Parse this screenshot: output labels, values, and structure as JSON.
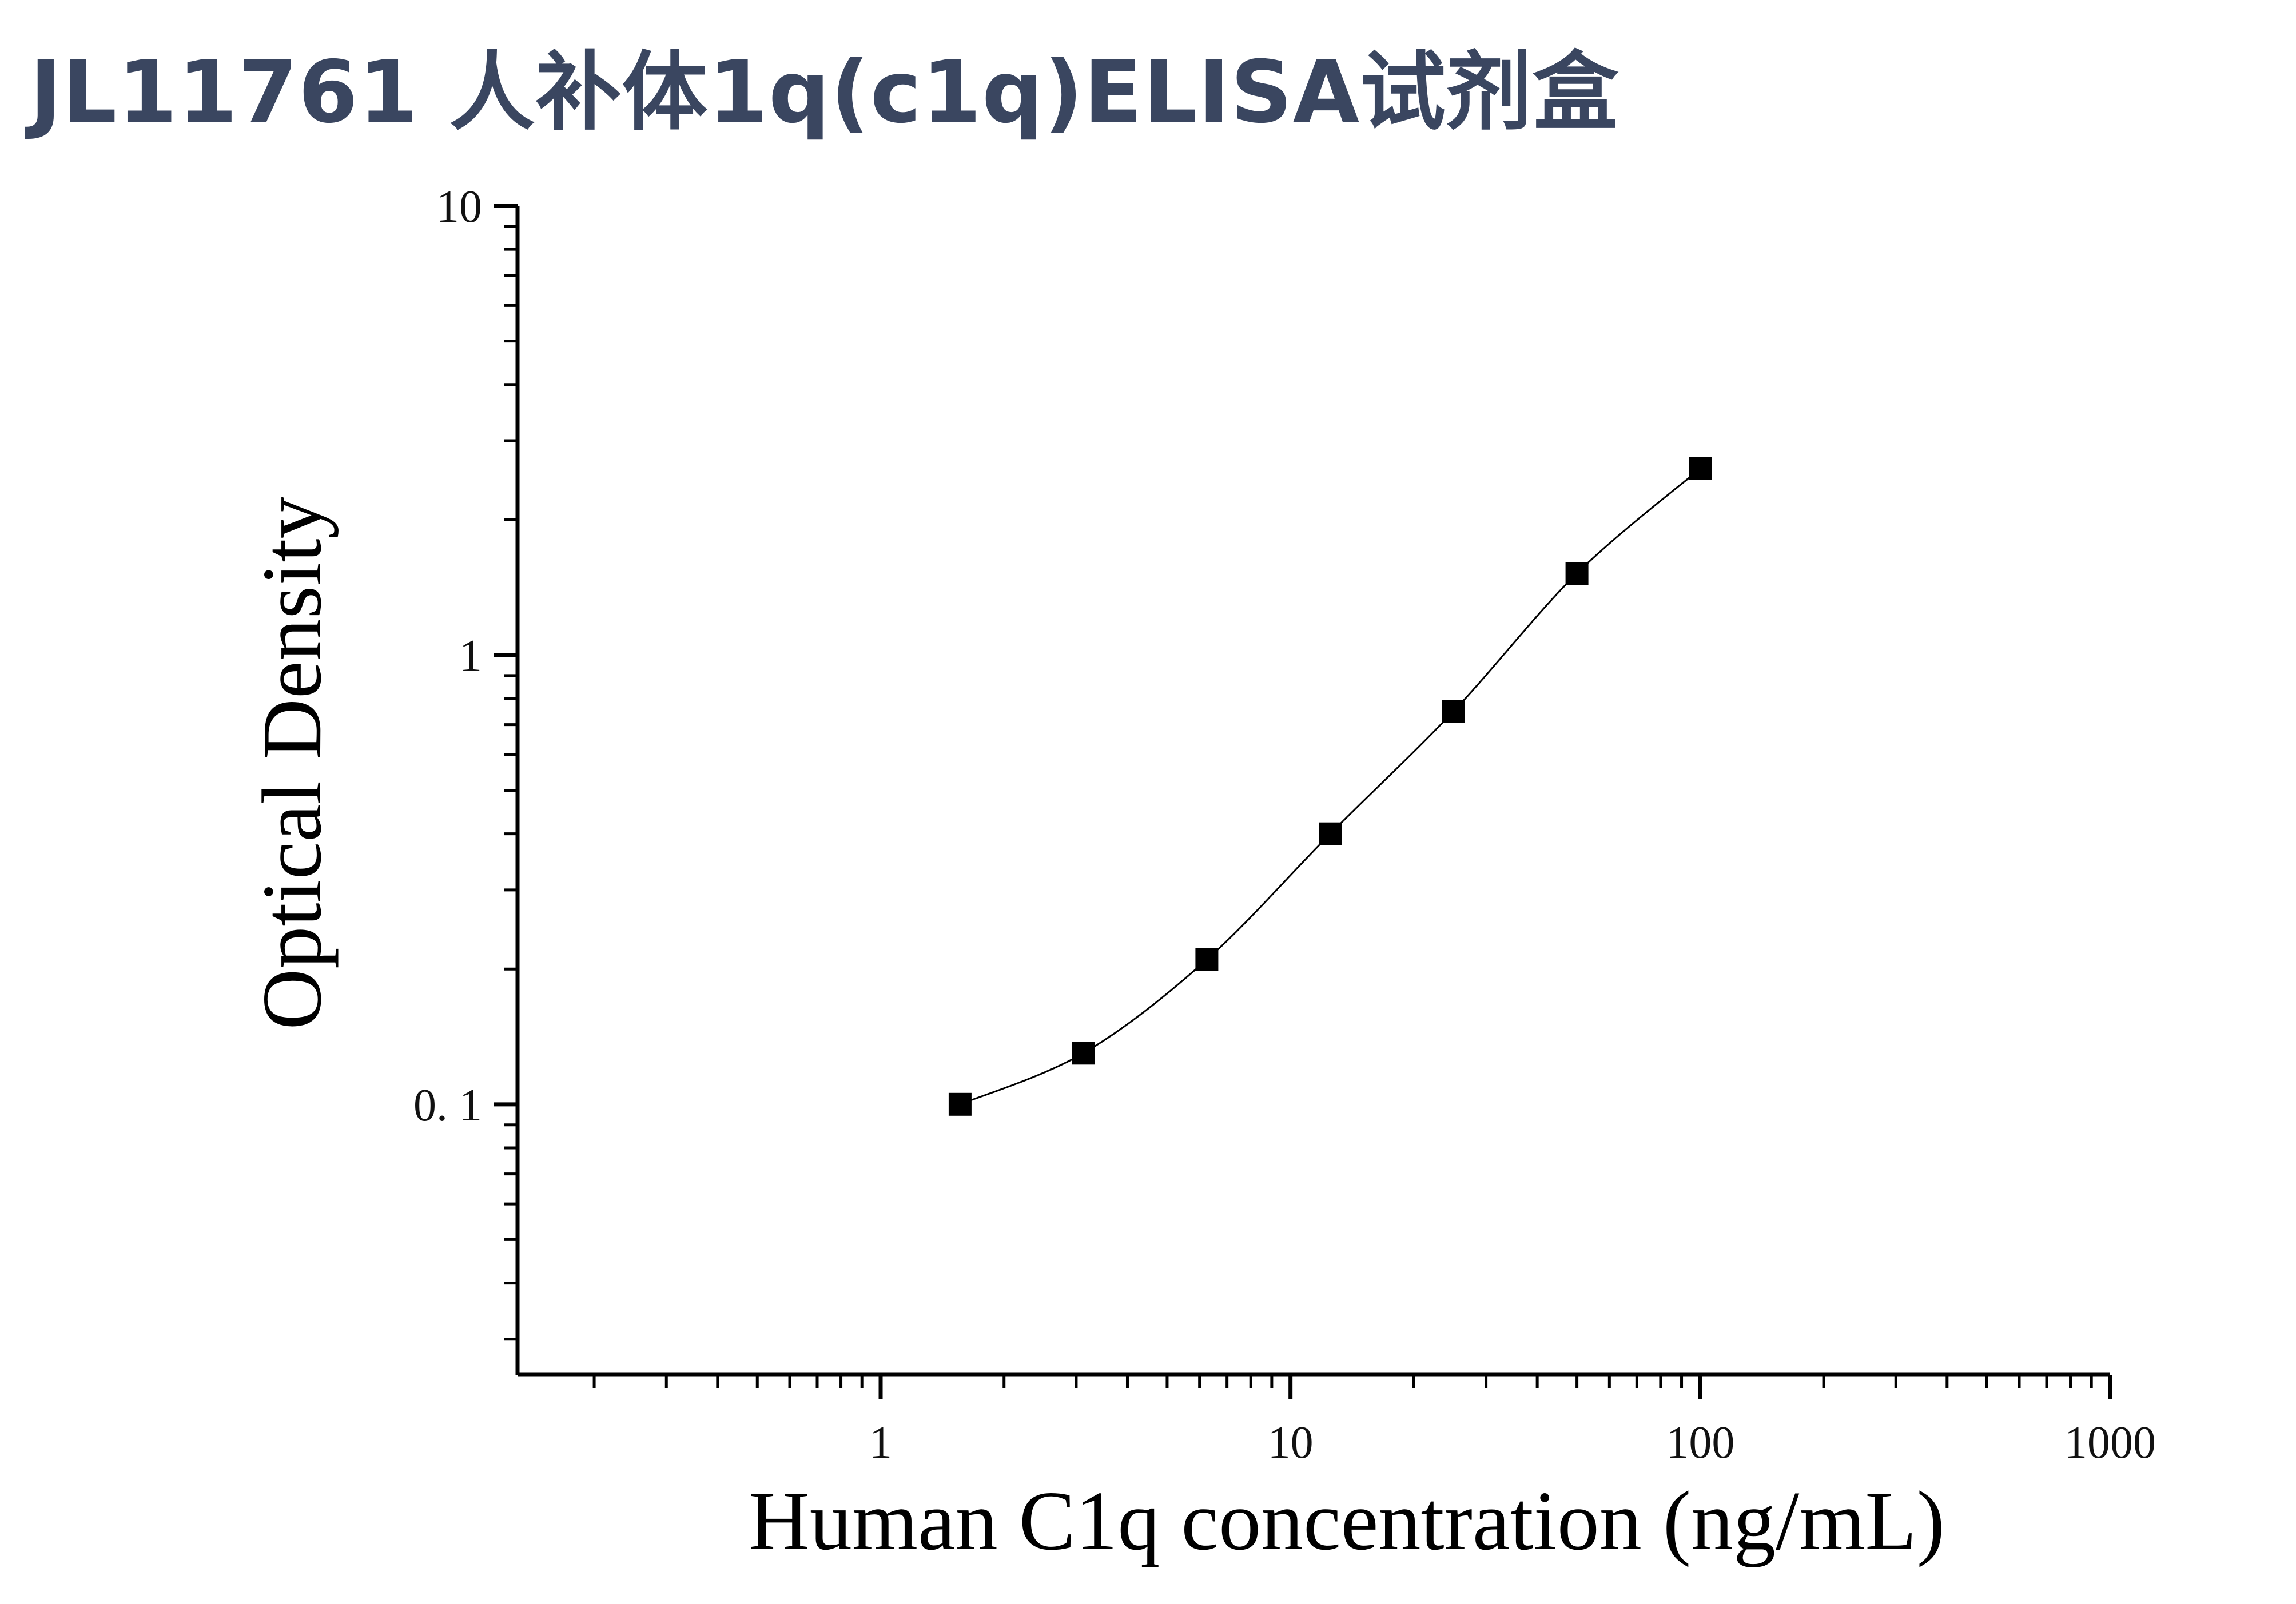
{
  "title": "JL11761 人补体1q(c1q)ELISA试剂盒",
  "chart_data": {
    "type": "scatter",
    "title": "JL11761 人补体1q(c1q)ELISA试剂盒",
    "xlabel": "Human C1q concentration (ng/mL)",
    "ylabel": "Optical Density",
    "x_scale": "log",
    "y_scale": "log",
    "xlim": [
      0.13,
      1000
    ],
    "ylim": [
      0.025,
      10
    ],
    "x_ticks": [
      {
        "value": 1,
        "label": "1"
      },
      {
        "value": 10,
        "label": "10"
      },
      {
        "value": 100,
        "label": "100"
      },
      {
        "value": 1000,
        "label": "1000"
      }
    ],
    "y_ticks": [
      {
        "value": 0.1,
        "label": "0. 1"
      },
      {
        "value": 1,
        "label": "1"
      },
      {
        "value": 10,
        "label": "10"
      }
    ],
    "grid": false,
    "marker": "square",
    "color": "#000000",
    "series": [
      {
        "x": [
          1.5625,
          3.125,
          6.25,
          12.5,
          25,
          50,
          100
        ],
        "y": [
          0.1,
          0.13,
          0.21,
          0.4,
          0.75,
          1.52,
          2.6
        ],
        "fit_curve": true
      }
    ]
  }
}
